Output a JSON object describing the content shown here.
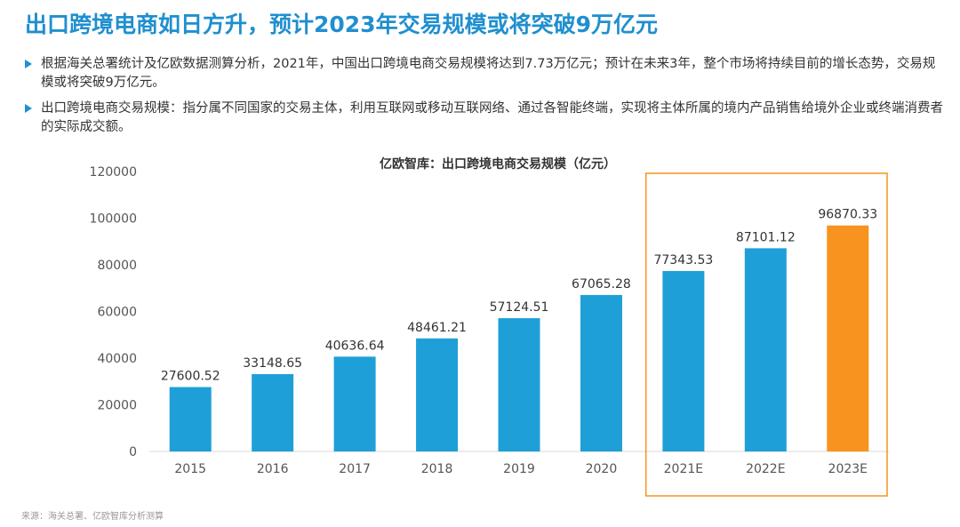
{
  "slide": {
    "title": "出口跨境电商如日方升，预计2023年交易规模或将突破9万亿元",
    "bullets": [
      "根据海关总署统计及亿欧数据测算分析，2021年，中国出口跨境电商交易规模将达到7.73万亿元；预计在未来3年，整个市场将持续目前的增长态势，交易规模或将突破9万亿元。",
      "出口跨境电商交易规模：指分属不同国家的交易主体，利用互联网或移动互联网络、通过各智能终端，实现将主体所属的境内产品销售给境外企业或终端消费者的实际成交额。"
    ],
    "source": "来源：海关总署、亿欧智库分析测算"
  },
  "colors": {
    "title": "#1f8fcf",
    "bar": "#1e9fd8",
    "highlight_bar": "#f7931e",
    "highlight_box": "#f7931e"
  },
  "chart_data": {
    "type": "bar",
    "title": "亿欧智库：出口跨境电商交易规模（亿元）",
    "categories": [
      "2015",
      "2016",
      "2017",
      "2018",
      "2019",
      "2020",
      "2021E",
      "2022E",
      "2023E"
    ],
    "values": [
      27600.52,
      33148.65,
      40636.64,
      48461.21,
      57124.51,
      67065.28,
      77343.53,
      87101.12,
      96870.33
    ],
    "value_labels": [
      "27600.52",
      "33148.65",
      "40636.64",
      "48461.21",
      "57124.51",
      "67065.28",
      "77343.53",
      "87101.12",
      "96870.33"
    ],
    "ylim": [
      0,
      120000
    ],
    "yticks": [
      "0",
      "20000",
      "40000",
      "60000",
      "80000",
      "100000",
      "120000"
    ],
    "highlighted_categories": [
      "2021E",
      "2022E",
      "2023E"
    ],
    "orange_bar": "2023E",
    "grid": false,
    "legend": "none"
  }
}
